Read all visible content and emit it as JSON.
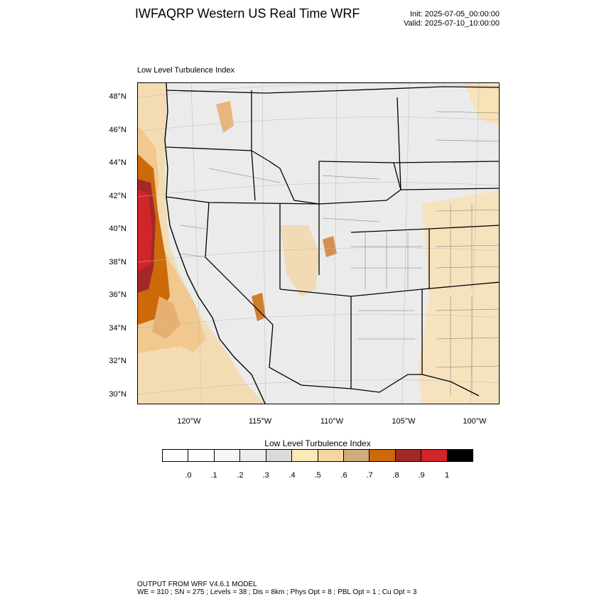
{
  "header": {
    "title": "IWFAQRP Western US Real Time WRF",
    "init": "Init: 2025-07-05_00:00:00",
    "valid": "Valid: 2025-07-10_10:00:00"
  },
  "map": {
    "subtitle": "Low Level Turbulence Index",
    "lat_labels": [
      "48°N",
      "46°N",
      "44°N",
      "42°N",
      "40°N",
      "38°N",
      "36°N",
      "34°N",
      "32°N",
      "30°N"
    ],
    "lon_labels": [
      "120°W",
      "115°W",
      "110°W",
      "105°W",
      "100°W"
    ]
  },
  "colorbar": {
    "title": "Low Level Turbulence Index",
    "labels": [
      ".0",
      ".1",
      ".2",
      ".3",
      ".4",
      ".5",
      ".6",
      ".7",
      ".8",
      ".9",
      "1"
    ],
    "colors": [
      "#ffffff",
      "#f6f6f6",
      "#ececec",
      "#dadada",
      "#fde8b8",
      "#f6d6a0",
      "#d2aa7c",
      "#cc6a0a",
      "#a32828",
      "#d2252a",
      "#000000"
    ]
  },
  "footer": {
    "line1": "OUTPUT FROM WRF V4.6.1 MODEL",
    "line2": "WE = 310 ; SN = 275 ; Levels = 38 ; Dis = 8km ; Phys Opt = 8 ; PBL Opt = 1 ; Cu Opt = 3"
  }
}
